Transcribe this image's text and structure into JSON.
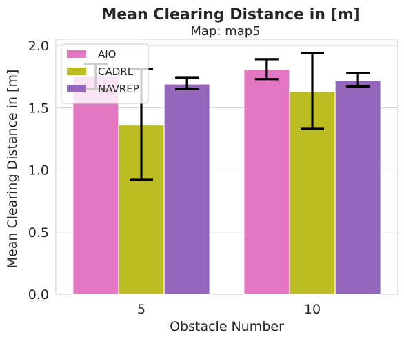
{
  "chart_data": {
    "type": "bar",
    "title": "Mean Clearing Distance in [m]",
    "subtitle": "Map: map5",
    "xlabel": "Obstacle Number",
    "ylabel": "Mean Clearing Distance in [m]",
    "categories": [
      "5",
      "10"
    ],
    "ylim": [
      0,
      2.05
    ],
    "yticks": [
      "0.0",
      "0.5",
      "1.0",
      "1.5",
      "2.0"
    ],
    "grid": true,
    "legend_position": "top-left",
    "series": [
      {
        "name": "AIO",
        "color": "#e377c2",
        "values": [
          1.75,
          1.81
        ],
        "err_low": [
          1.65,
          1.73
        ],
        "err_high": [
          1.85,
          1.89
        ]
      },
      {
        "name": "CADRL",
        "color": "#bcbd22",
        "values": [
          1.36,
          1.63
        ],
        "err_low": [
          0.92,
          1.33
        ],
        "err_high": [
          1.81,
          1.94
        ]
      },
      {
        "name": "NAVREP",
        "color": "#9467bd",
        "values": [
          1.69,
          1.72
        ],
        "err_low": [
          1.65,
          1.67
        ],
        "err_high": [
          1.74,
          1.78
        ]
      }
    ]
  }
}
